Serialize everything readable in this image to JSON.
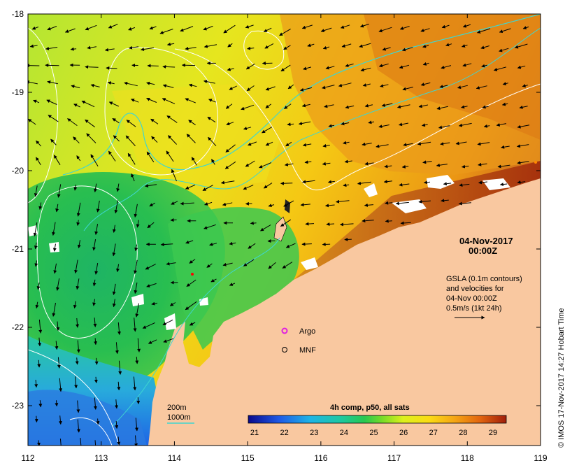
{
  "map": {
    "x_ticks": [
      "112",
      "113",
      "114",
      "115",
      "116",
      "117",
      "118",
      "119"
    ],
    "y_ticks": [
      "-18",
      "-19",
      "-20",
      "-21",
      "-22",
      "-23"
    ]
  },
  "date_label": {
    "date": "04-Nov-2017",
    "time": "00:00Z"
  },
  "info_box": {
    "line1": "GSLA (0.1m contours)",
    "line2": "and velocities for",
    "line3": "04-Nov 00:00Z",
    "line4": "0.5m/s (1kt 24h)"
  },
  "legend_markers": {
    "argo": "Argo",
    "mnf": "MNF"
  },
  "contour_legend": {
    "c200": "200m",
    "c1000": "1000m"
  },
  "colorbar": {
    "title": "4h comp, p50, all sats",
    "labels": [
      "21",
      "22",
      "23",
      "24",
      "25",
      "26",
      "27",
      "28",
      "29"
    ]
  },
  "side_credit": "© IMOS 17-Nov-2017 14:27 Hobart Time",
  "colors": {
    "land": "#f9c8a0",
    "contour_1000m": "#3fd6d0",
    "gsla_contour": "#ffffff",
    "argo_marker": "#e020e0"
  }
}
